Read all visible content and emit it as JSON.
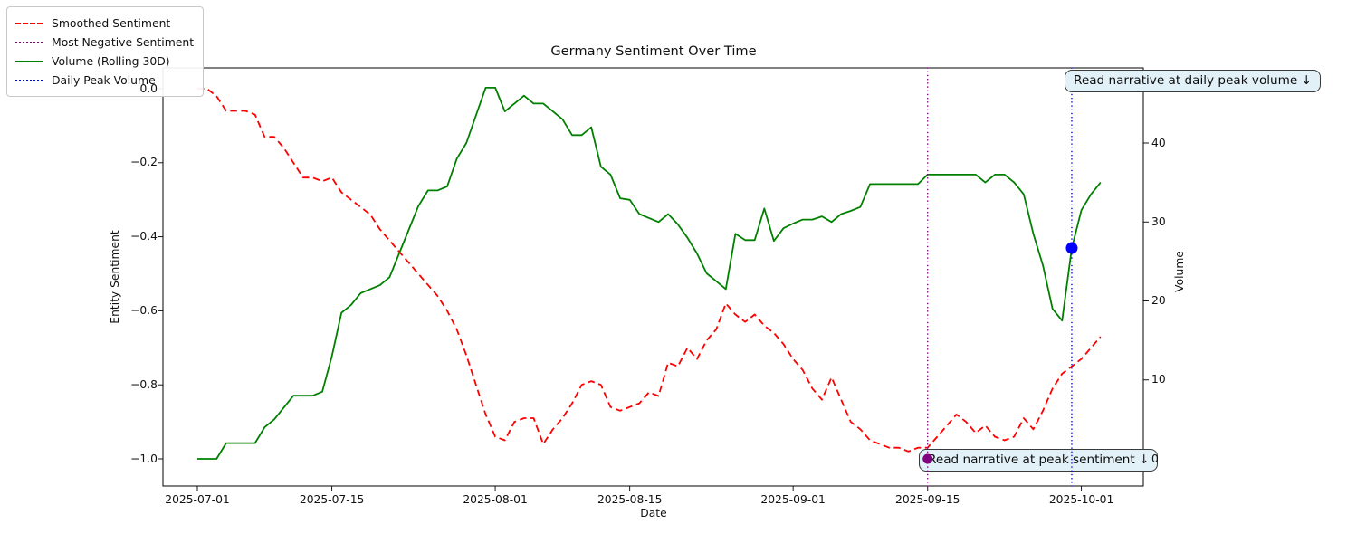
{
  "figure": {
    "title": "Germany Sentiment Over Time"
  },
  "legend": {
    "items": [
      {
        "label": "Smoothed Sentiment",
        "color": "#ff0000",
        "line_style": "dashed"
      },
      {
        "label": "Most Negative Sentiment",
        "color": "#800080",
        "line_style": "dotted"
      },
      {
        "label": "Volume (Rolling 30D)",
        "color": "#008000",
        "line_style": "solid"
      },
      {
        "label": "Daily Peak Volume",
        "color": "#0000ff",
        "line_style": "dotted"
      }
    ]
  },
  "annotations": {
    "peak_volume": {
      "text": "Read narrative at daily peak volume ↓",
      "fill": "#e2f1f8",
      "border": "#3a3a3a"
    },
    "peak_sentiment": {
      "text": "Read narrative at peak sentiment ↓",
      "fill": "#e2f1f8",
      "border": "#3a3a3a"
    }
  },
  "chart_data": {
    "type": "line",
    "title": "Germany Sentiment Over Time",
    "xlabel": "Date",
    "ylabel_left": "Entity Sentiment",
    "ylabel_right": "Volume",
    "grid": false,
    "legend_position": "upper-left-outside",
    "x_tick_labels": [
      "2025-07-01",
      "2025-07-15",
      "2025-08-01",
      "2025-08-15",
      "2025-09-01",
      "2025-09-15",
      "2025-10-01"
    ],
    "y_ticks_left": {
      "labels": [
        "0.0",
        "−0.2",
        "−0.4",
        "−0.6",
        "−0.8",
        "−1.0"
      ],
      "values": [
        0,
        -0.2,
        -0.4,
        -0.6,
        -0.8,
        -1.0
      ]
    },
    "y_ticks_right": {
      "labels": [
        "0",
        "10",
        "20",
        "30",
        "40"
      ],
      "values": [
        0,
        10,
        20,
        30,
        40
      ]
    },
    "ylim_left": [
      -1.07,
      0.06
    ],
    "ylim_right": [
      -3.4,
      49.5
    ],
    "series": [
      {
        "name": "Smoothed Sentiment",
        "axis": "left",
        "color": "#ff0000",
        "style": "dashed",
        "start_date": "2025-07-01",
        "frequency": "daily",
        "values": [
          0.0,
          0.0,
          -0.02,
          -0.06,
          -0.06,
          -0.06,
          -0.07,
          -0.13,
          -0.13,
          -0.16,
          -0.2,
          -0.24,
          -0.24,
          -0.25,
          -0.24,
          -0.28,
          -0.3,
          -0.32,
          -0.34,
          -0.38,
          -0.41,
          -0.44,
          -0.47,
          -0.5,
          -0.53,
          -0.56,
          -0.6,
          -0.65,
          -0.72,
          -0.8,
          -0.88,
          -0.94,
          -0.95,
          -0.9,
          -0.89,
          -0.89,
          -0.96,
          -0.92,
          -0.89,
          -0.85,
          -0.8,
          -0.79,
          -0.8,
          -0.86,
          -0.87,
          -0.86,
          -0.85,
          -0.82,
          -0.83,
          -0.74,
          -0.75,
          -0.7,
          -0.73,
          -0.68,
          -0.65,
          -0.58,
          -0.61,
          -0.63,
          -0.61,
          -0.64,
          -0.66,
          -0.69,
          -0.73,
          -0.76,
          -0.81,
          -0.84,
          -0.78,
          -0.84,
          -0.9,
          -0.92,
          -0.95,
          -0.96,
          -0.97,
          -0.97,
          -0.98,
          -0.97,
          -0.97,
          -0.94,
          -0.91,
          -0.88,
          -0.9,
          -0.93,
          -0.91,
          -0.94,
          -0.95,
          -0.94,
          -0.89,
          -0.92,
          -0.87,
          -0.81,
          -0.77,
          -0.75,
          -0.73,
          -0.7,
          -0.67
        ]
      },
      {
        "name": "Volume (Rolling 30D)",
        "axis": "right",
        "color": "#008000",
        "style": "solid",
        "start_date": "2025-07-01",
        "frequency": "daily",
        "values": [
          0,
          0,
          0,
          2,
          2,
          2,
          2,
          4,
          5,
          6.5,
          8,
          8,
          8,
          8.5,
          13,
          18.5,
          19.5,
          21,
          21.5,
          22,
          23,
          26,
          29,
          32,
          34,
          34,
          34.5,
          38,
          40,
          43.5,
          47,
          47,
          44,
          45,
          46,
          45,
          45,
          44,
          43,
          41,
          41,
          42,
          37,
          36,
          33,
          32.8,
          31,
          30.5,
          30,
          31,
          29.7,
          28,
          26,
          23.5,
          22.5,
          21.5,
          28.5,
          27.7,
          27.7,
          31.7,
          27.6,
          29.2,
          29.8,
          30.3,
          30.3,
          30.7,
          30.0,
          31.0,
          31.4,
          31.9,
          34.8,
          34.8,
          34.8,
          34.8,
          34.8,
          34.8,
          36,
          36,
          36,
          36,
          36,
          36,
          35,
          36,
          36,
          35,
          33.5,
          28.5,
          24.5,
          19,
          17.5,
          26.7,
          31.5,
          33.5,
          35
        ]
      }
    ],
    "event_markers": [
      {
        "name": "Most Negative Sentiment",
        "date": "2025-09-15",
        "axis": "left",
        "value": -1.0,
        "color": "#800080",
        "line_style": "dotted"
      },
      {
        "name": "Daily Peak Volume",
        "date": "2025-09-30",
        "axis": "right",
        "value": 26.7,
        "color": "#0000ff",
        "line_style": "dotted"
      }
    ]
  }
}
